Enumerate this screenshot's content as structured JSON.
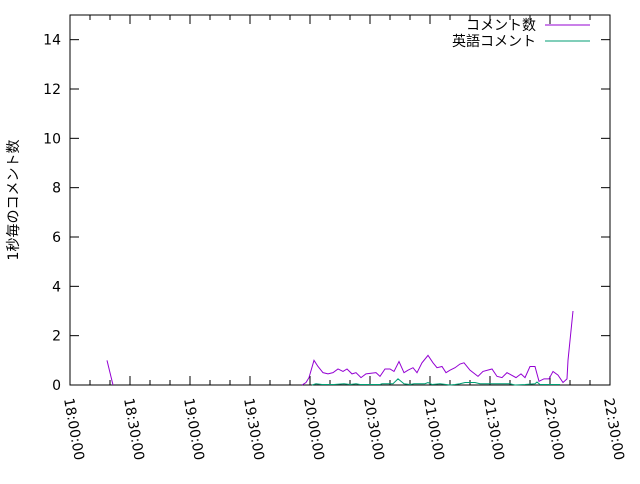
{
  "chart_data": {
    "type": "line",
    "title": "",
    "xlabel": "",
    "ylabel": "1秒毎のコメント数",
    "xlim": [
      "18:00:00",
      "22:30:00"
    ],
    "ylim": [
      0,
      15
    ],
    "xticks": [
      "18:00:00",
      "18:30:00",
      "19:00:00",
      "19:30:00",
      "20:00:00",
      "20:30:00",
      "21:00:00",
      "21:30:00",
      "22:00:00",
      "22:30:00"
    ],
    "yticks": [
      "0",
      "2",
      "4",
      "6",
      "8",
      "10",
      "12",
      "14"
    ],
    "grid": false,
    "legend": "top-right",
    "series": [
      {
        "name": "コメント数",
        "color": "#9400d3",
        "segments": [
          [
            [
              "18:18:30",
              1.0
            ],
            [
              "18:21:30",
              0
            ]
          ],
          [
            [
              "19:56:00",
              0
            ],
            [
              "19:58:00",
              0.1
            ],
            [
              "19:59:30",
              0.3
            ],
            [
              "20:02:00",
              1.0
            ],
            [
              "20:04:00",
              0.75
            ],
            [
              "20:06:30",
              0.5
            ],
            [
              "20:09:00",
              0.45
            ],
            [
              "20:11:30",
              0.5
            ],
            [
              "20:14:00",
              0.65
            ],
            [
              "20:16:30",
              0.55
            ],
            [
              "20:18:30",
              0.65
            ],
            [
              "20:21:00",
              0.45
            ],
            [
              "20:23:00",
              0.5
            ],
            [
              "20:25:30",
              0.3
            ],
            [
              "20:28:00",
              0.45
            ],
            [
              "20:33:00",
              0.5
            ],
            [
              "20:35:00",
              0.35
            ],
            [
              "20:37:30",
              0.65
            ],
            [
              "20:40:00",
              0.65
            ],
            [
              "20:42:00",
              0.55
            ],
            [
              "20:44:30",
              0.95
            ],
            [
              "20:47:00",
              0.5
            ],
            [
              "20:49:00",
              0.6
            ],
            [
              "20:51:30",
              0.7
            ],
            [
              "20:53:30",
              0.5
            ],
            [
              "20:56:00",
              0.9
            ],
            [
              "20:59:00",
              1.2
            ],
            [
              "21:01:30",
              0.9
            ],
            [
              "21:03:30",
              0.7
            ],
            [
              "21:06:00",
              0.75
            ],
            [
              "21:08:00",
              0.5
            ],
            [
              "21:10:00",
              0.6
            ],
            [
              "21:12:30",
              0.7
            ],
            [
              "21:15:00",
              0.85
            ],
            [
              "21:17:00",
              0.9
            ],
            [
              "21:20:00",
              0.6
            ],
            [
              "21:24:00",
              0.35
            ],
            [
              "21:26:30",
              0.55
            ],
            [
              "21:31:00",
              0.65
            ],
            [
              "21:33:30",
              0.35
            ],
            [
              "21:36:00",
              0.3
            ],
            [
              "21:38:30",
              0.5
            ],
            [
              "21:43:00",
              0.3
            ],
            [
              "21:45:30",
              0.45
            ],
            [
              "21:47:30",
              0.3
            ],
            [
              "21:50:00",
              0.75
            ],
            [
              "21:52:30",
              0.75
            ],
            [
              "21:54:30",
              0.15
            ],
            [
              "21:57:00",
              0.25
            ],
            [
              "21:59:30",
              0.25
            ],
            [
              "22:01:30",
              0.55
            ],
            [
              "22:04:00",
              0.4
            ],
            [
              "22:06:30",
              0.1
            ],
            [
              "22:08:30",
              0.25
            ],
            [
              "22:09:00",
              1.0
            ],
            [
              "22:11:30",
              3.0
            ]
          ]
        ]
      },
      {
        "name": "英語コメント",
        "color": "#009e73",
        "segments": [
          [
            [
              "20:01:00",
              0
            ],
            [
              "20:03:00",
              0.05
            ],
            [
              "20:06:00",
              0.02
            ],
            [
              "20:12:00",
              0.02
            ],
            [
              "20:17:00",
              0.05
            ],
            [
              "20:20:00",
              0.02
            ],
            [
              "20:23:00",
              0.05
            ],
            [
              "20:25:00",
              0.02
            ],
            [
              "20:35:00",
              0.02
            ],
            [
              "20:36:00",
              0.05
            ],
            [
              "20:41:30",
              0.05
            ],
            [
              "20:44:00",
              0.25
            ],
            [
              "20:47:00",
              0.05
            ],
            [
              "20:50:00",
              0.02
            ],
            [
              "20:52:00",
              0.05
            ],
            [
              "20:57:30",
              0.05
            ],
            [
              "20:59:00",
              0.1
            ],
            [
              "21:01:00",
              0.02
            ],
            [
              "21:05:00",
              0.05
            ],
            [
              "21:10:00",
              0
            ],
            [
              "21:12:30",
              0.02
            ],
            [
              "21:15:00",
              0.05
            ],
            [
              "21:17:30",
              0.1
            ],
            [
              "21:22:30",
              0.1
            ],
            [
              "21:25:00",
              0.05
            ],
            [
              "21:30:00",
              0.05
            ],
            [
              "21:35:00",
              0.05
            ],
            [
              "21:40:00",
              0.05
            ],
            [
              "21:42:30",
              0
            ],
            [
              "21:47:30",
              0.02
            ],
            [
              "21:52:30",
              0.05
            ],
            [
              "21:53:30",
              0.12
            ],
            [
              "21:55:00",
              0.02
            ],
            [
              "22:00:00",
              0.02
            ],
            [
              "22:05:00",
              0.02
            ]
          ]
        ]
      }
    ]
  }
}
